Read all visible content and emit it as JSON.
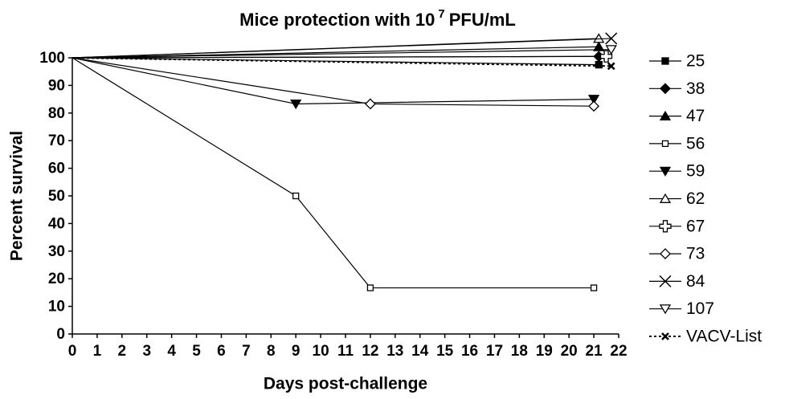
{
  "chart_data": {
    "type": "line",
    "title": [
      "Mice protection with 10",
      "7",
      "PFU/mL"
    ],
    "x_label": "Days post-challenge",
    "y_label": "Percent survival",
    "xlim": [
      0,
      22
    ],
    "xticks": [
      0,
      1,
      2,
      3,
      4,
      5,
      6,
      7,
      8,
      9,
      10,
      11,
      12,
      13,
      14,
      15,
      16,
      17,
      18,
      19,
      20,
      21,
      22
    ],
    "ylim": [
      0,
      100
    ],
    "yticks": [
      0,
      10,
      20,
      30,
      40,
      50,
      60,
      70,
      80,
      90,
      100
    ],
    "series": [
      {
        "name": "25",
        "color": "#000",
        "marker": "square-filled",
        "x": [
          0,
          21.2
        ],
        "values": [
          100,
          97.5
        ]
      },
      {
        "name": "38",
        "color": "#000",
        "marker": "diamond-filled",
        "x": [
          0,
          21.2
        ],
        "values": [
          100,
          100.5
        ]
      },
      {
        "name": "47",
        "color": "#000",
        "marker": "triangle-filled",
        "x": [
          0,
          21.2
        ],
        "values": [
          100,
          104
        ]
      },
      {
        "name": "56",
        "color": "#000",
        "marker": "square-open",
        "x": [
          0,
          9,
          12,
          21
        ],
        "values": [
          100,
          50,
          16.7,
          16.7
        ]
      },
      {
        "name": "59",
        "color": "#000",
        "marker": "triangle-down-filled",
        "x": [
          0,
          9,
          21
        ],
        "values": [
          100,
          83.3,
          85
        ]
      },
      {
        "name": "62",
        "color": "#000",
        "marker": "triangle-open",
        "x": [
          0,
          21.2
        ],
        "values": [
          100,
          107
        ]
      },
      {
        "name": "67",
        "color": "#000",
        "marker": "plus-open",
        "x": [
          0,
          21.5
        ],
        "values": [
          100,
          100.5
        ]
      },
      {
        "name": "73",
        "color": "#000",
        "marker": "diamond-open",
        "x": [
          0,
          12,
          21
        ],
        "values": [
          100,
          83.3,
          82.5
        ]
      },
      {
        "name": "84",
        "color": "#000",
        "marker": "x",
        "x": [
          0,
          21.7
        ],
        "values": [
          100,
          107
        ]
      },
      {
        "name": "107",
        "color": "#000",
        "marker": "triangle-down-open",
        "x": [
          0,
          21.7
        ],
        "values": [
          100,
          103
        ]
      },
      {
        "name": "VACV-List",
        "color": "#000",
        "marker": "x-bold",
        "dashed": true,
        "x": [
          0,
          21.7
        ],
        "values": [
          100,
          97
        ]
      }
    ]
  }
}
